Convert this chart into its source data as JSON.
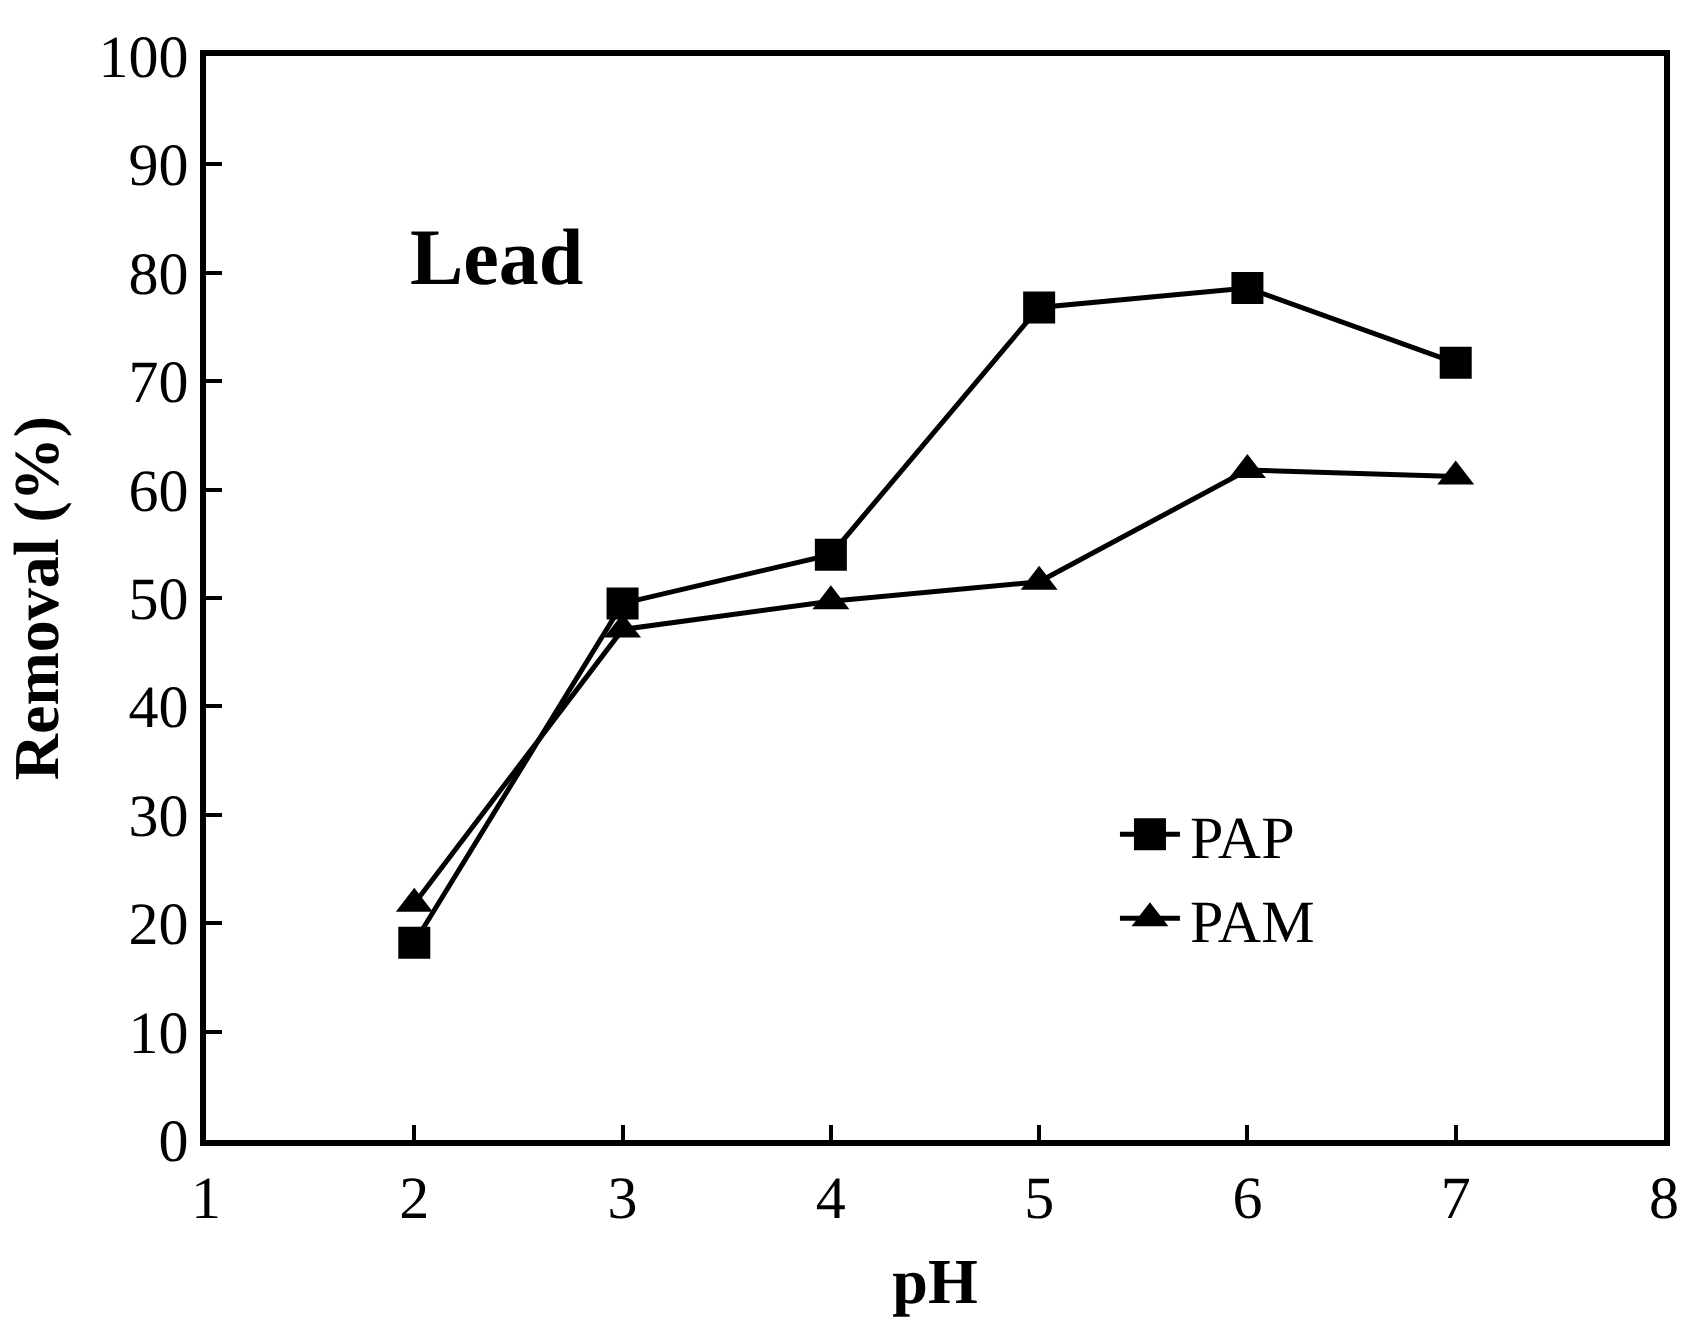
{
  "chart_data": {
    "type": "line",
    "xlabel": "pH",
    "ylabel": "Removal (%)",
    "annotations": [
      "Lead"
    ],
    "x": [
      2,
      3,
      4,
      5,
      6,
      7
    ],
    "series": [
      {
        "name": "PAP",
        "color": "#000000",
        "marker": "square",
        "values": [
          18.2,
          49.5,
          54,
          76.8,
          78.6,
          71.7
        ]
      },
      {
        "name": "PAM",
        "color": "#000000",
        "marker": "triangle",
        "values": [
          21.8,
          47.1,
          49.7,
          51.5,
          61.8,
          61.2
        ]
      }
    ],
    "xlim": [
      1,
      8
    ],
    "xticks": [
      1,
      2,
      3,
      4,
      5,
      6,
      7,
      8
    ],
    "ylim": [
      0,
      100
    ],
    "yticks": [
      0,
      10,
      20,
      30,
      40,
      50,
      60,
      70,
      80,
      90,
      100
    ],
    "legend": "bottom right",
    "line_style": "solid"
  }
}
